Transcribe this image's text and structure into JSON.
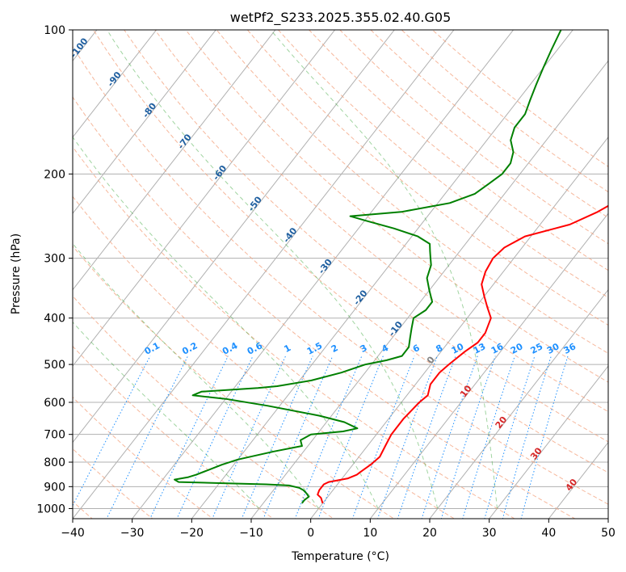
{
  "chart_data": {
    "type": "line",
    "title": "wetPf2_S233.2025.355.02.40.G05",
    "xlabel": "Temperature (°C)",
    "ylabel": "Pressure (hPa)",
    "xlim": [
      -40,
      50
    ],
    "ylim": [
      1050,
      100
    ],
    "y_scale": "log",
    "x_ticks": [
      -40,
      -30,
      -20,
      -10,
      0,
      10,
      20,
      30,
      40,
      50
    ],
    "y_ticks": [
      100,
      200,
      300,
      400,
      500,
      600,
      700,
      800,
      900,
      1000
    ],
    "grid": true,
    "series": [
      {
        "color": "#ff0000",
        "points": [
          [
            0.0,
            975
          ],
          [
            -1.0,
            950
          ],
          [
            -2.0,
            935
          ],
          [
            -2.3,
            915
          ],
          [
            -2.3,
            890
          ],
          [
            -1.8,
            880
          ],
          [
            1.0,
            865
          ],
          [
            2.0,
            850
          ],
          [
            2.2,
            840
          ],
          [
            3.0,
            810
          ],
          [
            3.5,
            780
          ],
          [
            3.0,
            740
          ],
          [
            2.5,
            700
          ],
          [
            2.5,
            650
          ],
          [
            3.0,
            600
          ],
          [
            3.5,
            580
          ],
          [
            2.5,
            550
          ],
          [
            2.5,
            520
          ],
          [
            3.0,
            500
          ],
          [
            4.0,
            470
          ],
          [
            5.0,
            450
          ],
          [
            5.0,
            430
          ],
          [
            4.0,
            400
          ],
          [
            2.0,
            380
          ],
          [
            0.0,
            360
          ],
          [
            -2.0,
            340
          ],
          [
            -3.0,
            320
          ],
          [
            -3.5,
            300
          ],
          [
            -3.0,
            285
          ],
          [
            -1.0,
            270
          ],
          [
            3.0,
            260
          ],
          [
            5.0,
            255
          ],
          [
            8.0,
            240
          ],
          [
            11.0,
            220
          ],
          [
            14.0,
            200
          ],
          [
            17.0,
            185
          ],
          [
            21.0,
            170
          ],
          [
            24.0,
            160
          ],
          [
            28.0,
            150
          ],
          [
            32.0,
            140
          ],
          [
            37.0,
            130
          ],
          [
            42.0,
            120
          ],
          [
            47.0,
            110
          ],
          [
            51.0,
            100
          ]
        ]
      },
      {
        "color": "#008000",
        "points": [
          [
            -3.5,
            975
          ],
          [
            -3.5,
            960
          ],
          [
            -3.2,
            945
          ],
          [
            -4.0,
            930
          ],
          [
            -5.0,
            915
          ],
          [
            -6.0,
            905
          ],
          [
            -8.0,
            895
          ],
          [
            -12.0,
            890
          ],
          [
            -20.0,
            885
          ],
          [
            -27.0,
            880
          ],
          [
            -28.0,
            870
          ],
          [
            -26.0,
            860
          ],
          [
            -25.0,
            850
          ],
          [
            -22.0,
            810
          ],
          [
            -20.0,
            790
          ],
          [
            -15.0,
            760
          ],
          [
            -11.0,
            740
          ],
          [
            -12.0,
            720
          ],
          [
            -11.0,
            700
          ],
          [
            -6.0,
            690
          ],
          [
            -4.0,
            680
          ],
          [
            -7.0,
            660
          ],
          [
            -12.0,
            640
          ],
          [
            -22.0,
            610
          ],
          [
            -30.0,
            590
          ],
          [
            -36.0,
            580
          ],
          [
            -35.0,
            570
          ],
          [
            -26.0,
            560
          ],
          [
            -23.0,
            555
          ],
          [
            -18.0,
            540
          ],
          [
            -14.0,
            520
          ],
          [
            -11.0,
            500
          ],
          [
            -8.0,
            490
          ],
          [
            -6.0,
            480
          ],
          [
            -6.0,
            460
          ],
          [
            -7.0,
            440
          ],
          [
            -8.0,
            420
          ],
          [
            -9.0,
            400
          ],
          [
            -8.0,
            385
          ],
          [
            -8.0,
            370
          ],
          [
            -10.0,
            350
          ],
          [
            -12.0,
            330
          ],
          [
            -13.0,
            310
          ],
          [
            -14.0,
            300
          ],
          [
            -15.0,
            290
          ],
          [
            -16.0,
            280
          ],
          [
            -19.0,
            270
          ],
          [
            -24.0,
            260
          ],
          [
            -30.0,
            250
          ],
          [
            -33.0,
            245
          ],
          [
            -25.0,
            240
          ],
          [
            -18.0,
            230
          ],
          [
            -15.0,
            220
          ],
          [
            -14.0,
            210
          ],
          [
            -13.0,
            200
          ],
          [
            -13.0,
            190
          ],
          [
            -14.0,
            180
          ],
          [
            -16.0,
            170
          ],
          [
            -17.0,
            160
          ],
          [
            -17.0,
            150
          ],
          [
            -18.0,
            140
          ],
          [
            -19.0,
            130
          ],
          [
            -20.0,
            120
          ],
          [
            -21.0,
            110
          ],
          [
            -22.0,
            100
          ]
        ]
      }
    ],
    "dry_adiabat_labels": [
      "-100",
      "-90",
      "-80",
      "-70",
      "-60",
      "-50",
      "-40",
      "-30",
      "-20",
      "-10",
      "0",
      "10",
      "20",
      "30",
      "40"
    ],
    "mixing_ratio_labels": [
      "0.1",
      "0.2",
      "0.4",
      "0.6",
      "1",
      "1.5",
      "2",
      "3",
      "4",
      "6",
      "8",
      "10",
      "13",
      "16",
      "20",
      "25",
      "30",
      "36"
    ],
    "colors": {
      "temperature": "#ff0000",
      "dewpoint": "#008000",
      "isotherm": "#b0b0b0",
      "isobar": "#b0b0b0",
      "dry_adiabat_cold": "#1f5fa0",
      "dry_adiabat_zero": "#808080",
      "dry_adiabat_warm": "#d62728",
      "mixing_ratio": "#1e90ff",
      "moist_adiabat": "#2ca02c"
    }
  }
}
